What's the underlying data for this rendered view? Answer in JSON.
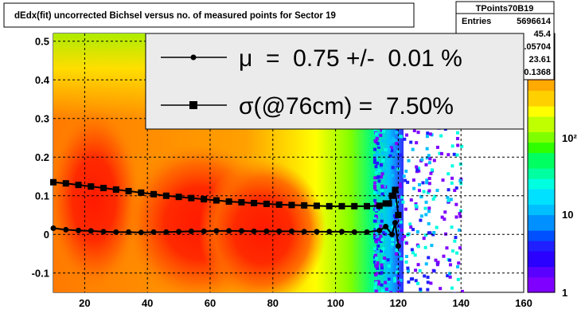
{
  "chart_data": {
    "type": "heatmap",
    "title": "dEdx(fit) uncorrected Bichsel versus no. of measured points for Sector 19",
    "xlabel": "",
    "ylabel": "",
    "xlim": [
      10,
      160
    ],
    "ylim": [
      -0.15,
      0.52
    ],
    "x_ticks": [
      "20",
      "40",
      "60",
      "80",
      "100",
      "120",
      "140",
      "160"
    ],
    "y_ticks": [
      "-0.1",
      "0",
      "0.1",
      "0.2",
      "0.3",
      "0.4",
      "0.5"
    ],
    "grid": true,
    "color_scale": {
      "log": true,
      "tick_labels": [
        "1",
        "10",
        "10²"
      ],
      "colors": [
        "#7f00ff",
        "#1f1fff",
        "#00bfff",
        "#00ffe0",
        "#00ff60",
        "#7fff00",
        "#ffff00",
        "#ffaa00",
        "#ff5500",
        "#ff1a00"
      ]
    },
    "stats_box": {
      "title": "TPoints70B19",
      "rows": [
        {
          "label": "Entries",
          "value": "5696614"
        },
        {
          "label": "",
          "value": "45.4"
        },
        {
          "label": "",
          "value": "0.05704"
        },
        {
          "label": "",
          "value": "23.61"
        },
        {
          "label": "",
          "value": "0.1368"
        }
      ]
    },
    "legend": {
      "placement": "top-right",
      "entries": [
        {
          "label": "μ  =  0.75 +/-  0.01 %",
          "marker": "circle"
        },
        {
          "label": "σ(@76cm) =  7.50%",
          "marker": "square"
        }
      ]
    },
    "series": [
      {
        "marker": "circle",
        "x": [
          10,
          14,
          18,
          22,
          26,
          30,
          34,
          38,
          42,
          46,
          50,
          54,
          58,
          62,
          66,
          70,
          74,
          78,
          82,
          86,
          90,
          94,
          98,
          102,
          106,
          110,
          114,
          116,
          118,
          119,
          120
        ],
        "y": [
          0.016,
          0.012,
          0.01,
          0.009,
          0.007,
          0.006,
          0.006,
          0.005,
          0.006,
          0.006,
          0.007,
          0.008,
          0.008,
          0.009,
          0.009,
          0.009,
          0.008,
          0.008,
          0.008,
          0.008,
          0.007,
          0.007,
          0.007,
          0.007,
          0.006,
          0.006,
          0.01,
          0.02,
          0.0,
          0.03,
          -0.03
        ]
      },
      {
        "marker": "square",
        "x": [
          10,
          14,
          18,
          22,
          26,
          30,
          34,
          38,
          42,
          46,
          50,
          54,
          58,
          62,
          66,
          70,
          74,
          78,
          82,
          86,
          90,
          94,
          98,
          102,
          106,
          110,
          114,
          116,
          117,
          118,
          119,
          120
        ],
        "y": [
          0.135,
          0.132,
          0.128,
          0.124,
          0.12,
          0.116,
          0.112,
          0.108,
          0.104,
          0.1,
          0.097,
          0.094,
          0.091,
          0.088,
          0.085,
          0.083,
          0.081,
          0.079,
          0.077,
          0.076,
          0.075,
          0.074,
          0.073,
          0.073,
          0.073,
          0.073,
          0.074,
          0.08,
          0.08,
          0.1,
          0.115,
          0.05
        ]
      }
    ]
  }
}
